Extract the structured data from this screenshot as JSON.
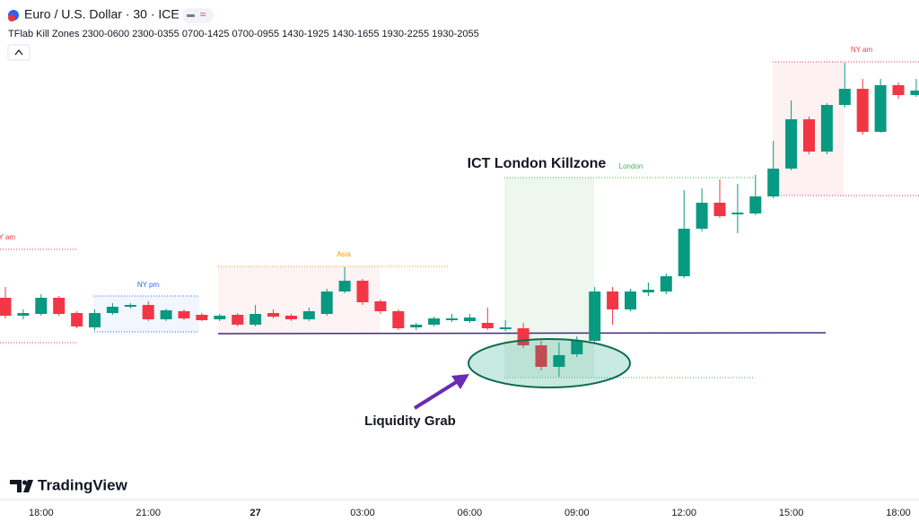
{
  "header": {
    "symbol": "Euro / U.S. Dollar · 30 · ICE",
    "indicator": "TFlab Kill Zones 2300-0600 2300-0355 0700-1425 0700-0955 1430-1925 1430-1655 1930-2255 1930-2055"
  },
  "logo": "TradingView",
  "chart_data": {
    "type": "candlestick",
    "categories": [
      null,
      null,
      "18:00",
      null,
      null,
      null,
      null,
      null,
      "21:00",
      null,
      null,
      null,
      null,
      null,
      "27",
      null,
      null,
      null,
      null,
      null,
      "03:00",
      null,
      null,
      null,
      null,
      null,
      "06:00",
      null,
      null,
      null,
      null,
      null,
      "09:00",
      null,
      null,
      null,
      null,
      null,
      "12:00",
      null,
      null,
      null,
      null,
      null,
      "15:00",
      null,
      null,
      null,
      null,
      null,
      "18:00",
      null
    ],
    "open": [
      268,
      248,
      250,
      268,
      251,
      235,
      251,
      258,
      260,
      244,
      253,
      249,
      244,
      249,
      238,
      251,
      248,
      244,
      250,
      275,
      287,
      264,
      253,
      235,
      238,
      243,
      242,
      240,
      233,
      234,
      215,
      191,
      205,
      220,
      275,
      255,
      274,
      275,
      292,
      345,
      374,
      361,
      362,
      381,
      412,
      467,
      431,
      483,
      501,
      453,
      505,
      494
    ],
    "high": [
      280,
      255,
      272,
      270,
      253,
      255,
      262,
      262,
      264,
      256,
      255,
      251,
      250,
      251,
      260,
      255,
      250,
      257,
      278,
      302,
      289,
      266,
      255,
      240,
      247,
      250,
      250,
      257,
      243,
      240,
      220,
      218,
      225,
      280,
      280,
      278,
      285,
      295,
      388,
      390,
      400,
      395,
      405,
      443,
      488,
      470,
      485,
      530,
      512,
      512,
      508,
      512
    ],
    "low": [
      245,
      244,
      248,
      248,
      234,
      232,
      249,
      256,
      242,
      242,
      243,
      242,
      242,
      236,
      236,
      245,
      242,
      242,
      248,
      273,
      260,
      250,
      232,
      232,
      236,
      241,
      240,
      232,
      231,
      212,
      187,
      180,
      202,
      218,
      238,
      253,
      270,
      272,
      290,
      342,
      357,
      340,
      360,
      379,
      410,
      428,
      428,
      480,
      450,
      452,
      490,
      492
    ],
    "close": [
      248,
      251,
      268,
      250,
      236,
      251,
      258,
      260,
      244,
      254,
      245,
      243,
      248,
      238,
      250,
      247,
      244,
      253,
      275,
      287,
      263,
      253,
      234,
      238,
      245,
      245,
      246,
      234,
      235,
      215,
      191,
      204,
      220,
      275,
      255,
      275,
      277,
      292,
      345,
      374,
      359,
      363,
      381,
      412,
      467,
      431,
      483,
      501,
      453,
      505,
      494,
      499
    ],
    "up_color": "#089981",
    "down_color": "#f23645",
    "ylim": [
      45,
      600
    ],
    "annotations": {
      "killzone": "ICT London Killzone",
      "grab": "Liquidity Grab",
      "asia": "Asia",
      "london": "London",
      "ny_pm": "NY pm",
      "ny_am": "NY am",
      "ny_am_left": "NY am"
    }
  }
}
